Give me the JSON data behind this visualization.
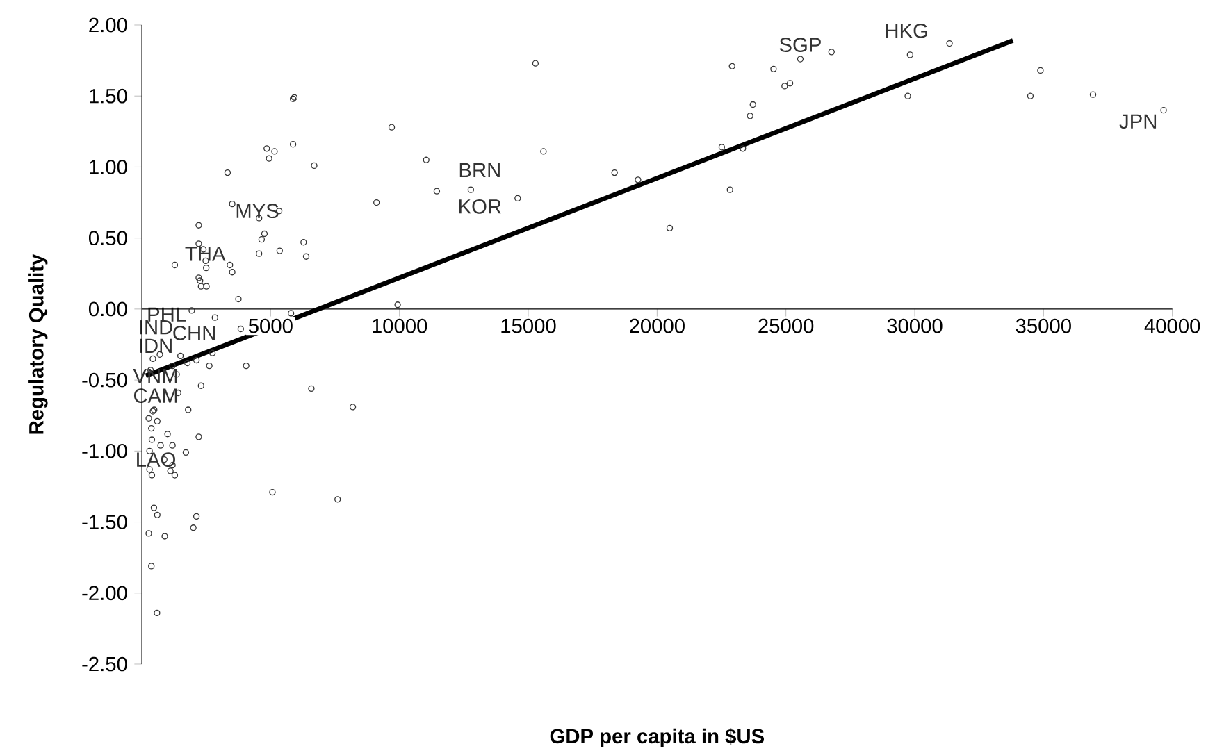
{
  "chart_data": {
    "type": "scatter",
    "xlabel": "GDP per capita in $US",
    "ylabel": "Regulatory Quality",
    "xlim": [
      0,
      40000
    ],
    "ylim": [
      -2.5,
      2.0
    ],
    "xticks": [
      5000,
      10000,
      15000,
      20000,
      25000,
      30000,
      35000,
      40000
    ],
    "yticks": [
      {
        "value": -2.5,
        "label": "-2.50"
      },
      {
        "value": -2.0,
        "label": "-2.00"
      },
      {
        "value": -1.5,
        "label": "-1.50"
      },
      {
        "value": -1.0,
        "label": "-1.00"
      },
      {
        "value": -0.5,
        "label": "-0.50"
      },
      {
        "value": 0,
        "label": "0.00"
      },
      {
        "value": 0.5,
        "label": "0.50"
      },
      {
        "value": 1.0,
        "label": "1.00"
      },
      {
        "value": 1.5,
        "label": "1.50"
      },
      {
        "value": 2.0,
        "label": "2.00"
      }
    ],
    "marker": "circle",
    "series": [
      {
        "color": "#333333",
        "x": [
          9700,
          9110,
          11040,
          11450,
          12770,
          14590,
          15280,
          15590,
          18350,
          19260,
          20490,
          22510,
          22830,
          22910,
          23330,
          23610,
          23720,
          24520,
          24950,
          25160,
          25560,
          9930,
          26770,
          29820,
          29730,
          31350,
          34880,
          34490,
          36920,
          39660,
          4850,
          5150,
          4940,
          5870,
          6690,
          3330,
          3510,
          5330,
          4550,
          4760,
          4650,
          2210,
          6280,
          2210,
          2390,
          5350,
          4550,
          6380,
          1280,
          3420,
          2480,
          2500,
          3510,
          2210,
          2260,
          2300,
          2510,
          3750,
          5790,
          2840,
          3840,
          1940,
          2740,
          2620,
          4050,
          1500,
          1770,
          2120,
          700,
          430,
          340,
          1190,
          2300,
          6580,
          8190,
          1800,
          430,
          1350,
          1410,
          480,
          270,
          600,
          370,
          1000,
          2210,
          390,
          730,
          1190,
          1710,
          300,
          870,
          1190,
          1110,
          1280,
          390,
          300,
          5070,
          7600,
          470,
          600,
          2120,
          2000,
          270,
          890,
          370,
          590,
          5870,
          5920
        ],
        "values": [
          1.28,
          0.75,
          1.05,
          0.83,
          0.84,
          0.78,
          1.73,
          1.11,
          0.96,
          0.91,
          0.57,
          1.14,
          0.84,
          1.71,
          1.13,
          1.36,
          1.44,
          1.69,
          1.57,
          1.59,
          1.76,
          0.03,
          1.81,
          1.79,
          1.5,
          1.87,
          1.68,
          1.5,
          1.51,
          1.4,
          1.13,
          1.11,
          1.06,
          1.16,
          1.01,
          0.96,
          0.74,
          0.69,
          0.64,
          0.53,
          0.49,
          0.59,
          0.47,
          0.46,
          0.42,
          0.41,
          0.39,
          0.37,
          0.31,
          0.31,
          0.34,
          0.29,
          0.26,
          0.22,
          0.2,
          0.16,
          0.16,
          0.07,
          -0.03,
          -0.06,
          -0.14,
          -0.01,
          -0.31,
          -0.4,
          -0.4,
          -0.33,
          -0.38,
          -0.36,
          -0.32,
          -0.35,
          -0.43,
          -0.4,
          -0.54,
          -0.56,
          -0.69,
          -0.71,
          -0.72,
          -0.46,
          -0.59,
          -0.71,
          -0.77,
          -0.79,
          -0.84,
          -0.88,
          -0.9,
          -0.92,
          -0.96,
          -0.96,
          -1.01,
          -1.0,
          -1.06,
          -1.1,
          -1.14,
          -1.17,
          -1.17,
          -1.13,
          -1.29,
          -1.34,
          -1.4,
          -1.45,
          -1.46,
          -1.54,
          -1.58,
          -1.6,
          -1.81,
          -2.14,
          1.48,
          1.49
        ]
      },
      {
        "type": "line",
        "color": "#000000",
        "marker": "none",
        "x": [
          160,
          33810
        ],
        "values": [
          -0.47,
          1.89
        ]
      }
    ],
    "annotations": [
      "SGP",
      "HKG",
      "JPN",
      "BRN",
      "KOR",
      "MYS",
      "THA",
      "PHL",
      "IND",
      "CHN",
      "IDN",
      "VNM",
      "CAM",
      "LAO"
    ]
  }
}
